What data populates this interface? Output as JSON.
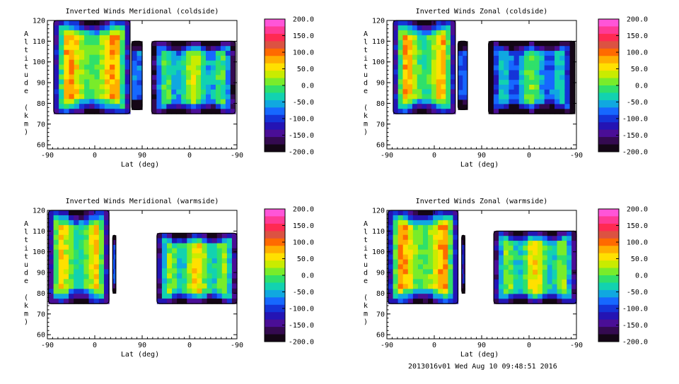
{
  "footer": "2013016v01 Wed Aug 10 09:48:51 2016",
  "colorbar": {
    "labels": [
      "200.0",
      "150.0",
      "100.0",
      "50.0",
      "0.0",
      "-50.0",
      "-100.0",
      "-150.0",
      "-200.0"
    ],
    "colors": [
      "#ff55d8",
      "#ff3a96",
      "#ff2a52",
      "#dc5242",
      "#ff6a00",
      "#ffae00",
      "#ffe000",
      "#c9ec00",
      "#79ec2a",
      "#2fe06a",
      "#12d2b0",
      "#10a8e0",
      "#1668ff",
      "#1434d8",
      "#2414b4",
      "#4a0e96",
      "#340a50",
      "#140616"
    ]
  },
  "chart_data": [
    {
      "type": "heatmap",
      "title": "Inverted Winds Meridional (coldside)",
      "xlabel": "Lat (deg)",
      "ylabel": "Altitude (km)",
      "x_ticks": [
        "-90",
        "0",
        "90",
        "0",
        "-90"
      ],
      "y_ticks": [
        "120",
        "110",
        "100",
        "90",
        "80",
        "70",
        "60"
      ],
      "ylim": [
        58,
        120
      ],
      "color_range": [
        -200,
        200
      ],
      "colorbar_labels": [
        "200.0",
        "150.0",
        "100.0",
        "50.0",
        "0.0",
        "-50.0",
        "-100.0",
        "-150.0",
        "-200.0"
      ],
      "regions": [
        {
          "lat_range": [
            -78,
            67
          ],
          "alt_range": [
            75,
            120
          ],
          "peak": 40
        },
        {
          "lat_range": [
            70,
            90
          ],
          "alt_range": [
            77,
            110
          ],
          "peak": -80
        },
        {
          "lat_range": [
            108,
            267
          ],
          "alt_range": [
            75,
            110
          ],
          "peak": -10
        }
      ]
    },
    {
      "type": "heatmap",
      "title": "Inverted Winds Zonal (coldside)",
      "xlabel": "Lat (deg)",
      "ylabel": "Altitude (km)",
      "x_ticks": [
        "-90",
        "0",
        "90",
        "0",
        "-90"
      ],
      "y_ticks": [
        "120",
        "110",
        "100",
        "90",
        "80",
        "70",
        "60"
      ],
      "ylim": [
        58,
        120
      ],
      "color_range": [
        -200,
        200
      ],
      "colorbar_labels": [
        "200.0",
        "150.0",
        "100.0",
        "50.0",
        "0.0",
        "-50.0",
        "-100.0",
        "-150.0",
        "-200.0"
      ],
      "regions": [
        {
          "lat_range": [
            -78,
            40
          ],
          "alt_range": [
            75,
            120
          ],
          "peak": 30
        },
        {
          "lat_range": [
            45,
            63
          ],
          "alt_range": [
            77,
            110
          ],
          "peak": -90
        },
        {
          "lat_range": [
            103,
            267
          ],
          "alt_range": [
            75,
            110
          ],
          "peak": -40
        }
      ]
    },
    {
      "type": "heatmap",
      "title": "Inverted Winds Meridional (warmside)",
      "xlabel": "Lat (deg)",
      "ylabel": "Altitude (km)",
      "x_ticks": [
        "-90",
        "0",
        "90",
        "0",
        "-90"
      ],
      "y_ticks": [
        "120",
        "110",
        "100",
        "90",
        "80",
        "70",
        "60"
      ],
      "ylim": [
        58,
        120
      ],
      "color_range": [
        -200,
        200
      ],
      "colorbar_labels": [
        "200.0",
        "150.0",
        "100.0",
        "50.0",
        "0.0",
        "-50.0",
        "-100.0",
        "-150.0",
        "-200.0"
      ],
      "regions": [
        {
          "lat_range": [
            -88,
            27
          ],
          "alt_range": [
            75,
            120
          ],
          "peak": 20
        },
        {
          "lat_range": [
            34,
            40
          ],
          "alt_range": [
            80,
            108
          ],
          "peak": -90
        },
        {
          "lat_range": [
            118,
            270
          ],
          "alt_range": [
            75,
            109
          ],
          "peak": 10
        }
      ]
    },
    {
      "type": "heatmap",
      "title": "Inverted Winds Zonal (warmside)",
      "xlabel": "Lat (deg)",
      "ylabel": "Altitude (km)",
      "x_ticks": [
        "-90",
        "0",
        "90",
        "0",
        "-90"
      ],
      "y_ticks": [
        "120",
        "110",
        "100",
        "90",
        "80",
        "70",
        "60"
      ],
      "ylim": [
        58,
        120
      ],
      "color_range": [
        -200,
        200
      ],
      "colorbar_labels": [
        "200.0",
        "150.0",
        "100.0",
        "50.0",
        "0.0",
        "-50.0",
        "-100.0",
        "-150.0",
        "-200.0"
      ],
      "regions": [
        {
          "lat_range": [
            -88,
            45
          ],
          "alt_range": [
            75,
            120
          ],
          "peak": 40
        },
        {
          "lat_range": [
            52,
            58
          ],
          "alt_range": [
            80,
            108
          ],
          "peak": -120
        },
        {
          "lat_range": [
            113,
            270
          ],
          "alt_range": [
            75,
            110
          ],
          "peak": 10
        }
      ]
    }
  ]
}
